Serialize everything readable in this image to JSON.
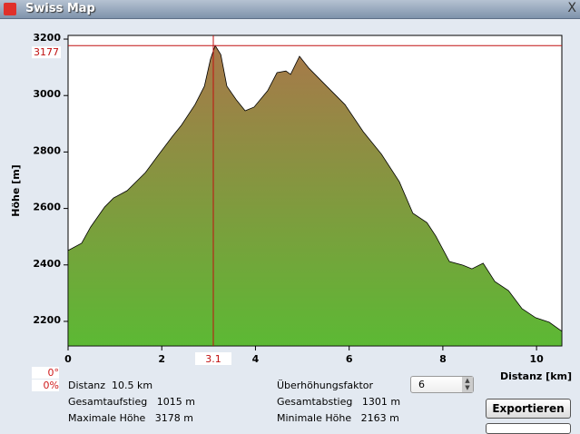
{
  "window": {
    "title": "Swiss Map",
    "close_label": "X"
  },
  "chart_data": {
    "type": "area",
    "xlabel": "Distanz [km]",
    "ylabel": "Höhe [m]",
    "xlim": [
      0,
      10.54
    ],
    "ylim": [
      2113,
      3213
    ],
    "xticks": [
      0,
      2,
      4,
      6,
      8,
      10
    ],
    "yticks": [
      2200,
      2400,
      2600,
      2800,
      3000,
      3200
    ],
    "x": [
      0,
      0.29,
      0.48,
      0.78,
      0.97,
      1.26,
      1.65,
      1.94,
      2.23,
      2.42,
      2.71,
      2.91,
      3.04,
      3.14,
      3.26,
      3.39,
      3.59,
      3.78,
      3.97,
      4.26,
      4.46,
      4.65,
      4.75,
      4.94,
      5.14,
      5.52,
      5.91,
      6.3,
      6.69,
      7.07,
      7.36,
      7.66,
      7.85,
      8.14,
      8.43,
      8.62,
      8.86,
      9.11,
      9.4,
      9.69,
      9.98,
      10.27,
      10.54
    ],
    "y": [
      2451,
      2477,
      2534,
      2605,
      2637,
      2663,
      2727,
      2792,
      2856,
      2895,
      2968,
      3033,
      3129,
      3177,
      3145,
      3033,
      2985,
      2946,
      2959,
      3017,
      3081,
      3087,
      3075,
      3139,
      3097,
      3033,
      2968,
      2872,
      2792,
      2695,
      2583,
      2550,
      2502,
      2412,
      2399,
      2386,
      2406,
      2341,
      2309,
      2245,
      2213,
      2197,
      2165
    ],
    "cursor": {
      "x": 3.1,
      "y": 3177,
      "x_label": "3.1",
      "y_label": "3177"
    },
    "fill_colors": {
      "top": "#a8784a",
      "bottom": "#5cb934"
    },
    "cursor_color": "#c01010"
  },
  "stats": {
    "slope_deg": "0°",
    "slope_pct": "0%",
    "distance": "Distanz  10.5 km",
    "ascent": "Gesamtaufstieg   1015 m",
    "max": "Maximale Höhe   3178 m",
    "factor_label": "Überhöhungsfaktor",
    "factor_value": "6",
    "descent": "Gesamtabstieg   1301 m",
    "min": "Minimale Höhe   2163 m"
  },
  "buttons": {
    "export": "Exportieren"
  }
}
